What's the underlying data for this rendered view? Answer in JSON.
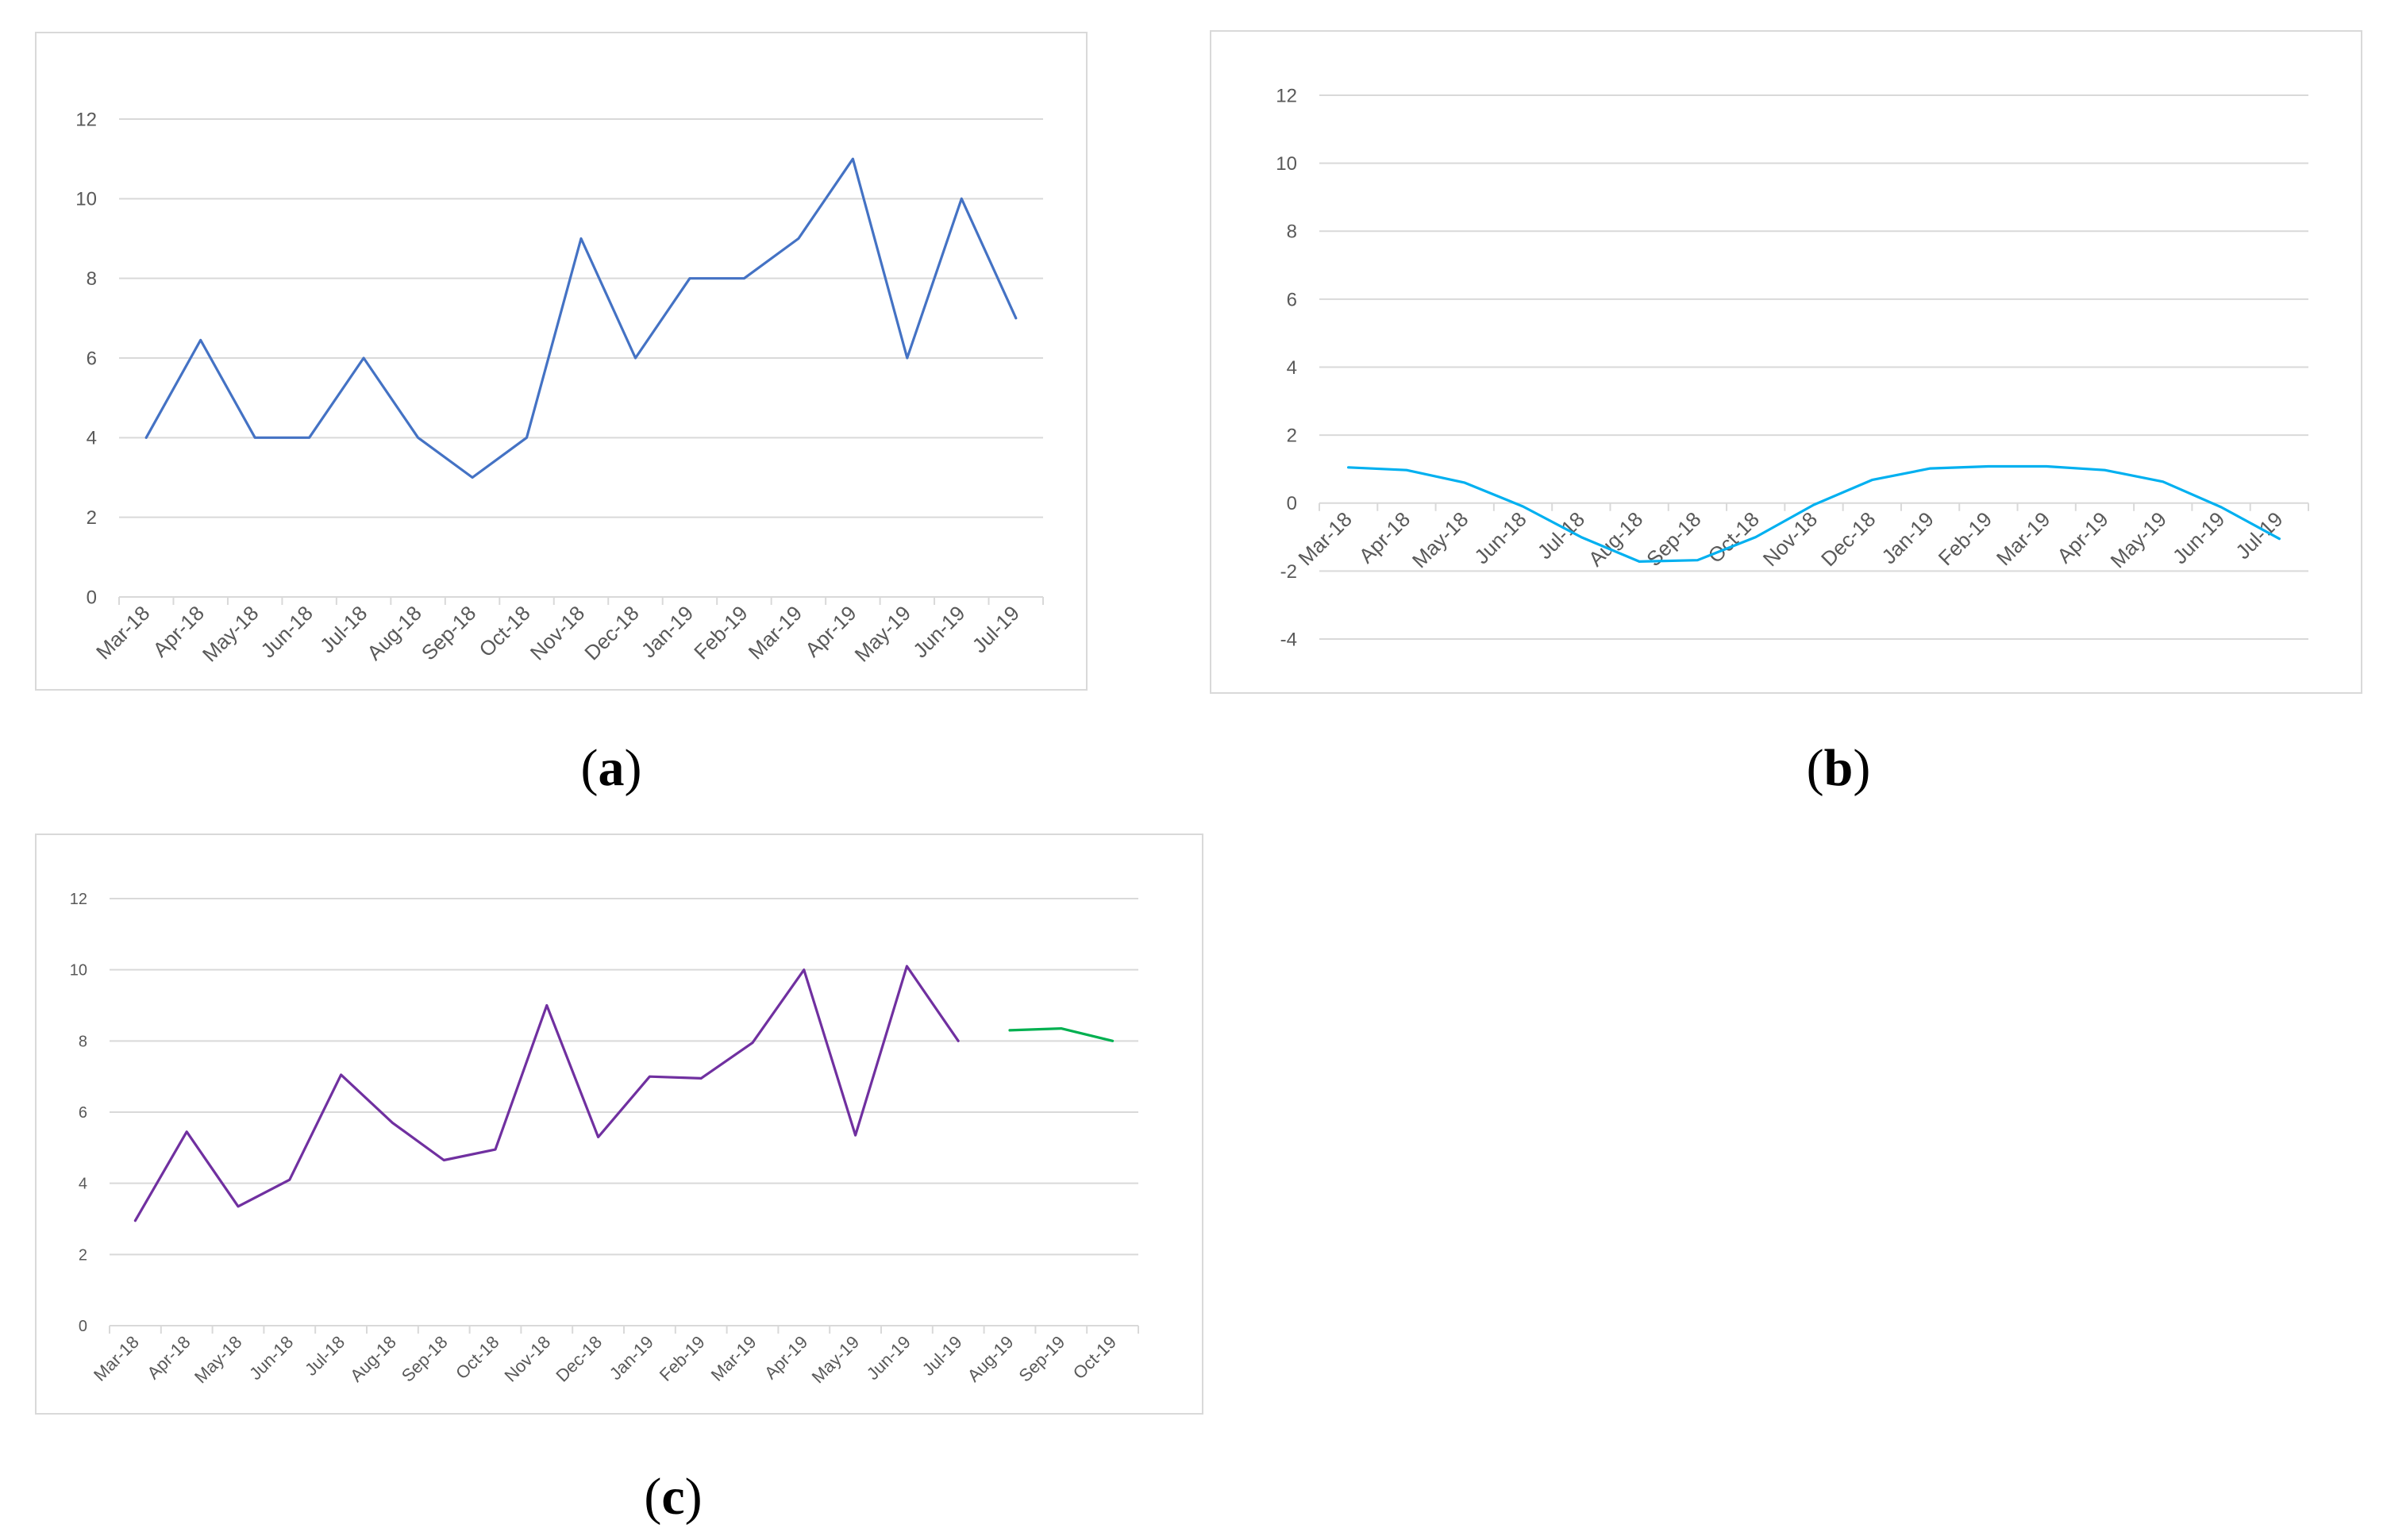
{
  "panels": [
    {
      "id": "a",
      "caption_letter": "a",
      "chart_data": {
        "type": "line",
        "categories": [
          "Mar-18",
          "Apr-18",
          "May-18",
          "Jun-18",
          "Jul-18",
          "Aug-18",
          "Sep-18",
          "Oct-18",
          "Nov-18",
          "Dec-18",
          "Jan-19",
          "Feb-19",
          "Mar-19",
          "Apr-19",
          "May-19",
          "Jun-19",
          "Jul-19"
        ],
        "yticks": [
          "0",
          "2",
          "4",
          "6",
          "8",
          "10",
          "12"
        ],
        "ylim": [
          0,
          12
        ],
        "grid": true,
        "series": [
          {
            "color": "#4472c4",
            "values": [
              4,
              6.45,
              4,
              4,
              6,
              4,
              3,
              4,
              9,
              6,
              8,
              8,
              9,
              11,
              6,
              10,
              7
            ]
          }
        ]
      }
    },
    {
      "id": "b",
      "caption_letter": "b",
      "chart_data": {
        "type": "line",
        "categories": [
          "Mar-18",
          "Apr-18",
          "May-18",
          "Jun-18",
          "Jul-18",
          "Aug-18",
          "Sep-18",
          "Oct-18",
          "Nov-18",
          "Dec-18",
          "Jan-19",
          "Feb-19",
          "Mar-19",
          "Apr-19",
          "May-19",
          "Jun-19",
          "Jul-19"
        ],
        "yticks": [
          "-4",
          "-2",
          "0",
          "2",
          "4",
          "6",
          "8",
          "10",
          "12"
        ],
        "ylim": [
          -4,
          12
        ],
        "grid": true,
        "series": [
          {
            "color": "#00b0f0",
            "values": [
              1.05,
              0.97,
              0.6,
              -0.1,
              -1.0,
              -1.72,
              -1.68,
              -1.0,
              -0.05,
              0.68,
              1.02,
              1.08,
              1.08,
              0.97,
              0.63,
              -0.12,
              -1.05
            ]
          }
        ]
      }
    },
    {
      "id": "c",
      "caption_letter": "c",
      "chart_data": {
        "type": "line",
        "categories": [
          "Mar-18",
          "Apr-18",
          "May-18",
          "Jun-18",
          "Jul-18",
          "Aug-18",
          "Sep-18",
          "Oct-18",
          "Nov-18",
          "Dec-18",
          "Jan-19",
          "Feb-19",
          "Mar-19",
          "Apr-19",
          "May-19",
          "Jun-19",
          "Jul-19",
          "Aug-19",
          "Sep-19",
          "Oct-19"
        ],
        "yticks": [
          "0",
          "2",
          "4",
          "6",
          "8",
          "10",
          "12"
        ],
        "ylim": [
          0,
          12
        ],
        "grid": true,
        "series": [
          {
            "color": "#7030a0",
            "values": [
              2.95,
              5.45,
              3.35,
              4.1,
              7.05,
              5.7,
              4.65,
              4.95,
              9.0,
              5.3,
              7.0,
              6.95,
              7.95,
              10.0,
              5.35,
              10.1,
              8.0,
              null,
              null,
              null
            ]
          },
          {
            "color": "#00b050",
            "values": [
              null,
              null,
              null,
              null,
              null,
              null,
              null,
              null,
              null,
              null,
              null,
              null,
              null,
              null,
              null,
              null,
              null,
              8.3,
              8.35,
              8.0
            ]
          }
        ]
      }
    }
  ]
}
